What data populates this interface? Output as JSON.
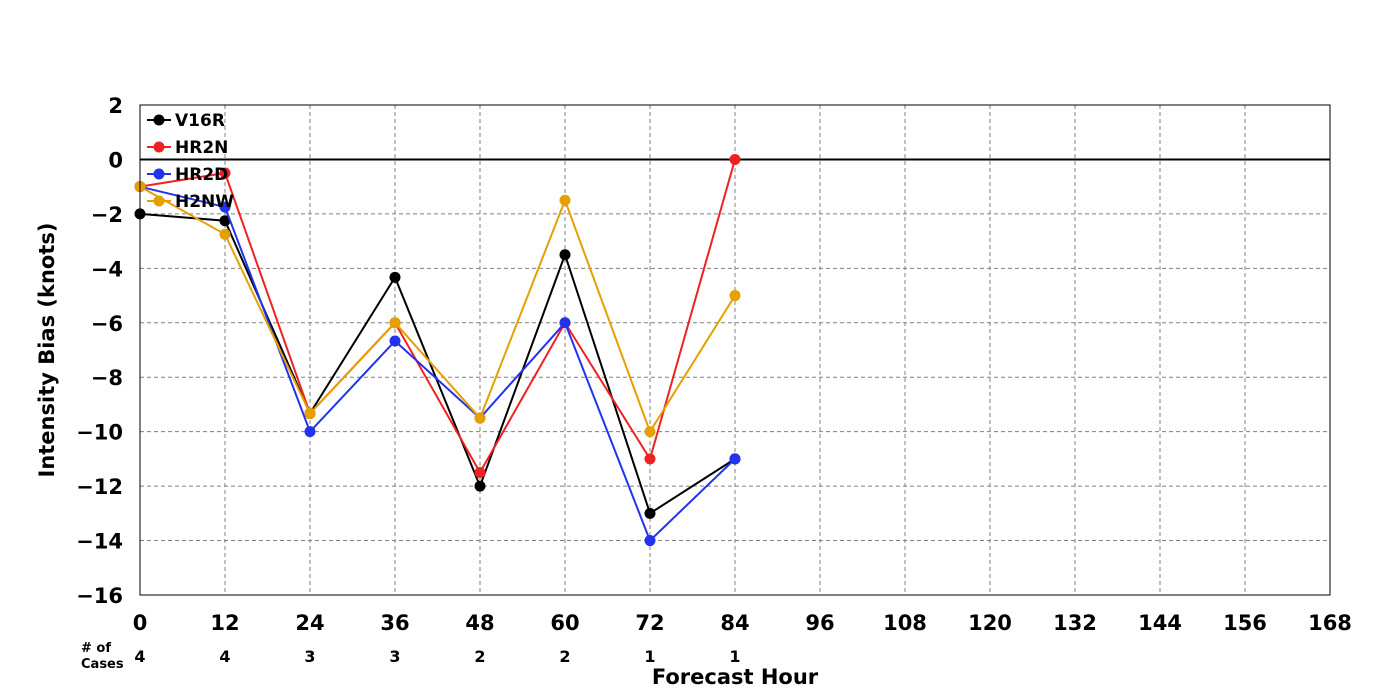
{
  "chart_data": {
    "type": "line",
    "title": "",
    "xlabel": "Forecast Hour",
    "ylabel": "Intensity Bias (knots)",
    "xlim": [
      0,
      168
    ],
    "ylim": [
      -16,
      2
    ],
    "xticks": [
      0,
      12,
      24,
      36,
      48,
      60,
      72,
      84,
      96,
      108,
      120,
      132,
      144,
      156,
      168
    ],
    "yticks": [
      2,
      0,
      -2,
      -4,
      -6,
      -8,
      -10,
      -12,
      -14,
      -16
    ],
    "ytick_labels": [
      "2",
      "0",
      "−2",
      "−4",
      "−6",
      "−8",
      "−10",
      "−12",
      "−14",
      "−16"
    ],
    "grid": true,
    "zero_line": true,
    "legend_position": "top-left",
    "x": [
      0,
      12,
      24,
      36,
      48,
      60,
      72,
      84
    ],
    "series": [
      {
        "name": "V16R",
        "color": "#000000",
        "values": [
          -2.0,
          -2.25,
          -9.33,
          -4.33,
          -12.0,
          -3.5,
          -13.0,
          -11.0
        ]
      },
      {
        "name": "HR2N",
        "color": "#ee2222",
        "values": [
          -1.0,
          -0.5,
          -9.33,
          -6.0,
          -11.5,
          -6.0,
          -11.0,
          0.0
        ]
      },
      {
        "name": "HR2D",
        "color": "#2233ee",
        "values": [
          -1.0,
          -1.75,
          -10.0,
          -6.67,
          -9.5,
          -6.0,
          -14.0,
          -11.0
        ]
      },
      {
        "name": "H2NW",
        "color": "#e69f00",
        "values": [
          -1.0,
          -2.75,
          -9.33,
          -6.0,
          -9.5,
          -1.5,
          -10.0,
          -5.0
        ]
      }
    ],
    "cases": {
      "label_line1": "# of",
      "label_line2": "Cases",
      "x": [
        0,
        12,
        24,
        36,
        48,
        60,
        72,
        84
      ],
      "counts": [
        "4",
        "4",
        "3",
        "3",
        "2",
        "2",
        "1",
        "1"
      ]
    }
  }
}
